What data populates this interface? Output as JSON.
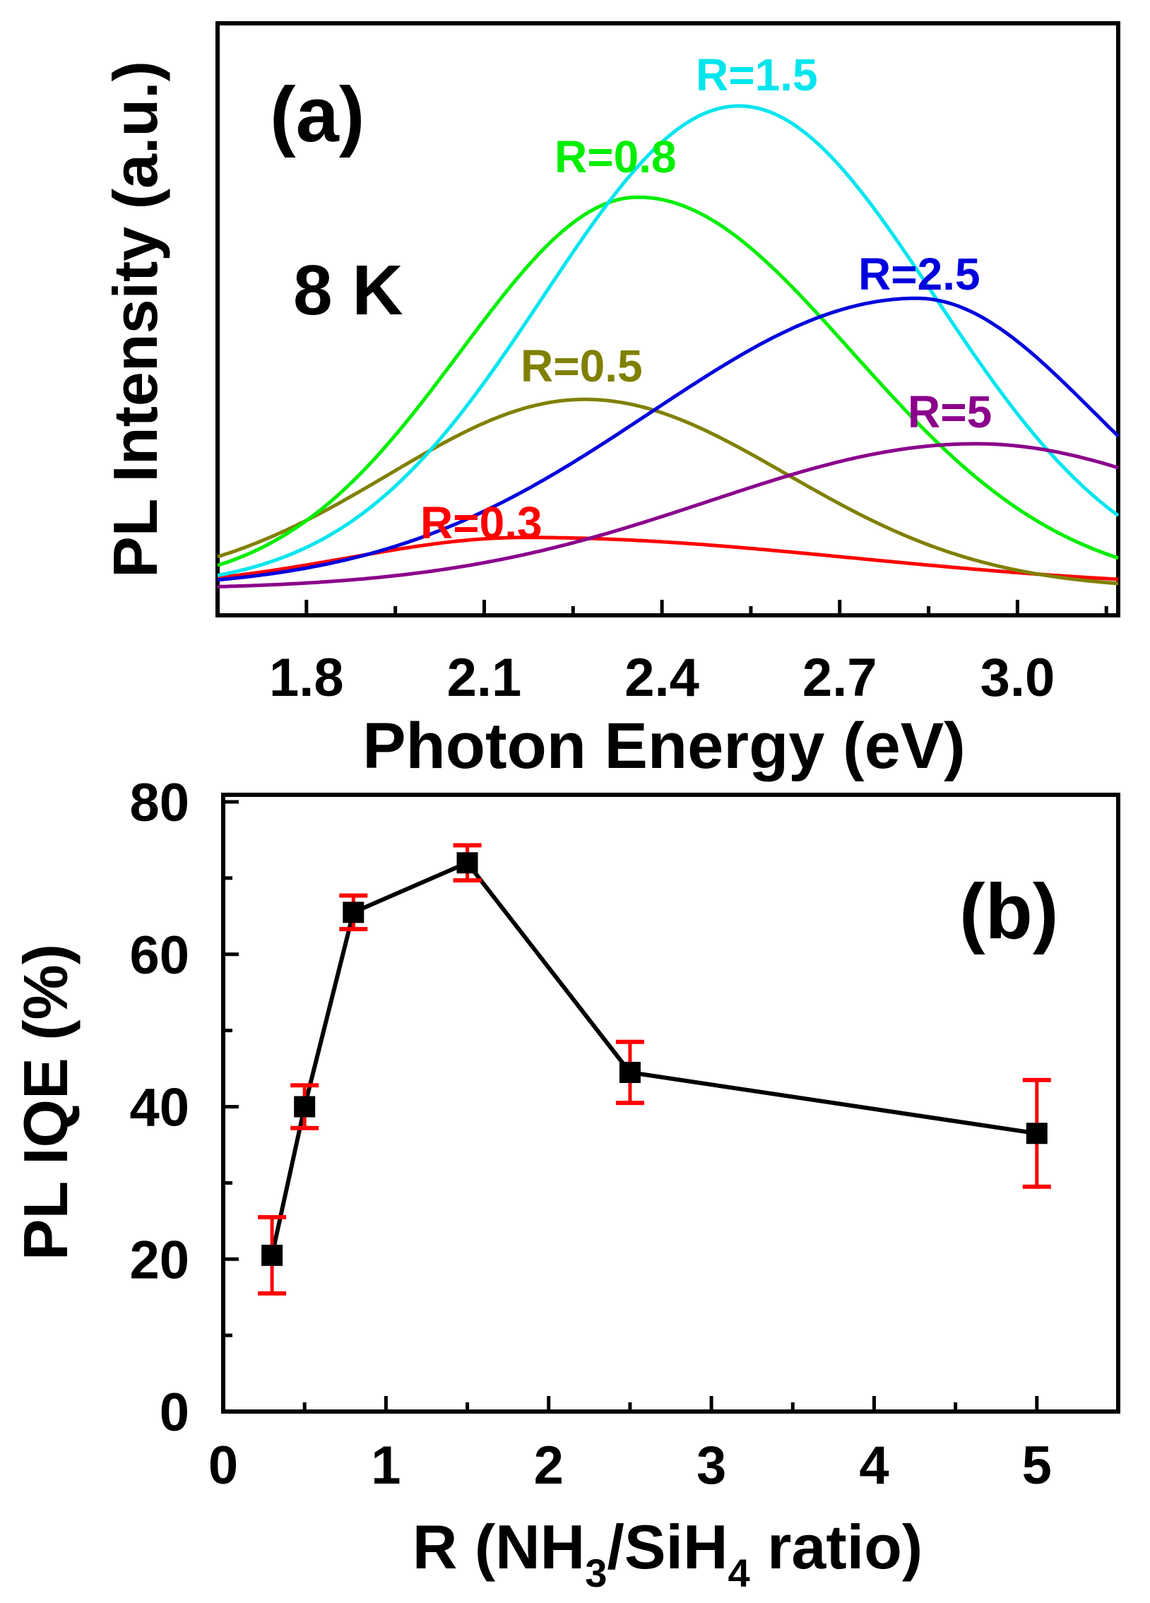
{
  "chart_data": [
    {
      "type": "line",
      "panel_label": "(a)",
      "annotation": "8 K",
      "xlabel": "Photon Energy (eV)",
      "ylabel": "PL Intensity (a.u.)",
      "xlim": [
        1.65,
        3.17
      ],
      "ylim": [
        0,
        1.0
      ],
      "xticks": [
        "1.8",
        "2.1",
        "2.4",
        "2.7",
        "3.0"
      ],
      "xtick_values": [
        1.8,
        2.1,
        2.4,
        2.7,
        3.0
      ],
      "series": [
        {
          "name": "R=0.3",
          "color": "#ff0000",
          "peak_eV": 2.17,
          "peak_intensity": 0.125,
          "width_low": 0.3,
          "width_high": 0.55,
          "baseline": 0.02
        },
        {
          "name": "R=0.5",
          "color": "#808000",
          "peak_eV": 2.27,
          "peak_intensity": 0.405,
          "width_low": 0.33,
          "width_high": 0.34,
          "baseline": 0.02
        },
        {
          "name": "R=0.8",
          "color": "#00ee00",
          "peak_eV": 2.36,
          "peak_intensity": 0.815,
          "width_low": 0.3,
          "width_high": 0.36,
          "baseline": 0.02
        },
        {
          "name": "R=1.5",
          "color": "#00e5ee",
          "peak_eV": 2.53,
          "peak_intensity": 1.0,
          "width_low": 0.33,
          "width_high": 0.33,
          "baseline": 0.02
        },
        {
          "name": "R=2.5",
          "color": "#0000dd",
          "peak_eV": 2.83,
          "peak_intensity": 0.61,
          "width_low": 0.45,
          "width_high": 0.3,
          "baseline": 0.02
        },
        {
          "name": "R=5",
          "color": "#8b008b",
          "peak_eV": 2.93,
          "peak_intensity": 0.315,
          "width_low": 0.45,
          "width_high": 0.4,
          "baseline": 0.02
        }
      ]
    },
    {
      "type": "scatter",
      "panel_label": "(b)",
      "xlabel": "R (NH₃/SiH₄ ratio)",
      "ylabel": "PL IQE (%)",
      "xlim": [
        0,
        5.5
      ],
      "ylim": [
        0,
        80
      ],
      "xticks": [
        "0",
        "1",
        "2",
        "3",
        "4",
        "5"
      ],
      "xtick_values": [
        0,
        1,
        2,
        3,
        4,
        5
      ],
      "yticks": [
        "0",
        "20",
        "40",
        "60",
        "80"
      ],
      "ytick_values": [
        0,
        20,
        40,
        60,
        80
      ],
      "x": [
        0.3,
        0.5,
        0.8,
        1.5,
        2.5,
        5
      ],
      "y": [
        20.5,
        40,
        65.5,
        72,
        44.5,
        36.5
      ],
      "error": [
        5,
        2.8,
        2.2,
        2.3,
        4,
        7
      ],
      "marker_color": "#000000",
      "line_color": "#000000",
      "error_color": "#ff0000"
    }
  ]
}
